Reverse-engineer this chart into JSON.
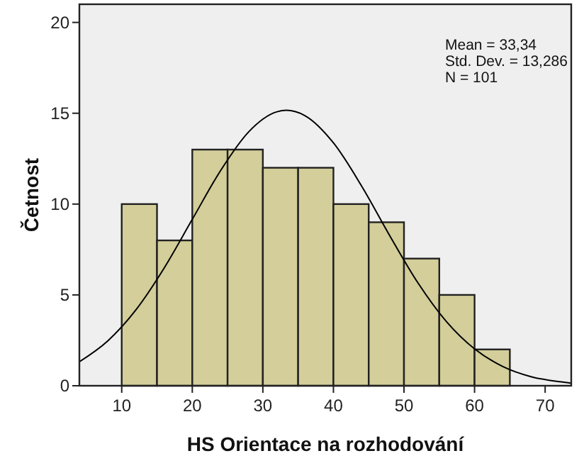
{
  "chart_data": {
    "type": "histogram",
    "xlabel": "HS Orientace na rozhodování",
    "ylabel": "Četnost",
    "bins": [
      10,
      15,
      20,
      25,
      30,
      35,
      40,
      45,
      50,
      55,
      60,
      65
    ],
    "values": [
      10,
      8,
      13,
      13,
      12,
      12,
      10,
      9,
      7,
      5,
      2
    ],
    "color": "#d3ce9a",
    "series": [
      {
        "type": "line",
        "color": "#000000",
        "x": [
          4,
          8,
          12,
          16,
          20,
          24,
          28,
          32,
          33.34,
          36,
          40,
          44,
          48,
          52,
          56,
          60,
          64,
          68,
          72,
          73.6
        ],
        "values": [
          1.32,
          2.46,
          4.17,
          6.47,
          9.16,
          11.84,
          13.98,
          15.08,
          15.16,
          14.86,
          13.37,
          10.99,
          8.25,
          5.65,
          3.54,
          2.03,
          1.06,
          0.5,
          0.22,
          0.15
        ]
      }
    ],
    "xlim": [
      4,
      73.7
    ],
    "xticks": [
      10,
      20,
      30,
      40,
      50,
      60,
      70
    ],
    "ylim": [
      0,
      21
    ],
    "yticks": [
      0,
      5,
      10,
      15,
      20
    ],
    "annotations": [
      "Mean = 33,34",
      "Std. Dev. = 13,286",
      "N = 101"
    ],
    "grid": false
  }
}
